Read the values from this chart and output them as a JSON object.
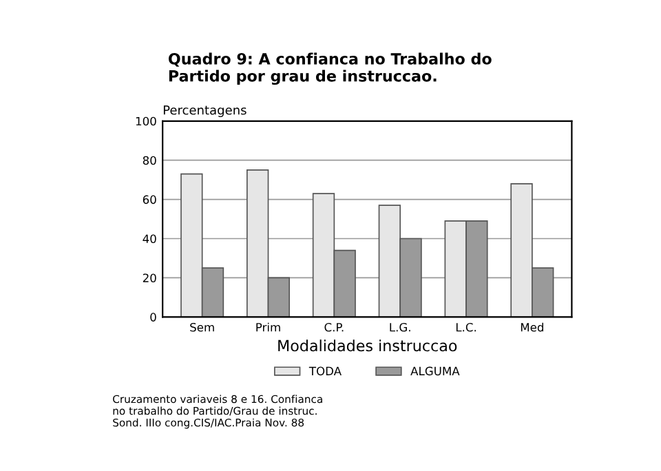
{
  "chart_data": {
    "type": "bar",
    "title": "Quadro 9: A confianca no Trabalho do\nPartido por grau de instruccao.",
    "ylabel": "Percentagens",
    "xlabel": "Modalidades instruccao",
    "categories": [
      "Sem",
      "Prim",
      "C.P.",
      "L.G.",
      "L.C.",
      "Med"
    ],
    "series": [
      {
        "name": "TODA",
        "color": "#e6e6e6",
        "values": [
          73,
          75,
          63,
          57,
          49,
          68
        ]
      },
      {
        "name": "ALGUMA",
        "color": "#9a9a9a",
        "values": [
          25,
          20,
          34,
          40,
          49,
          25
        ]
      }
    ],
    "ylim": [
      0,
      100
    ],
    "yticks": [
      0,
      20,
      40,
      60,
      80,
      100
    ],
    "grid": "y",
    "legend": "bottom",
    "annotations": [
      "Cruzamento variaveis 8 e 16. Confianca\nno trabalho do Partido/Grau de instruc.\nSond. IIIo cong.CIS/IAC.Praia Nov. 88"
    ]
  }
}
